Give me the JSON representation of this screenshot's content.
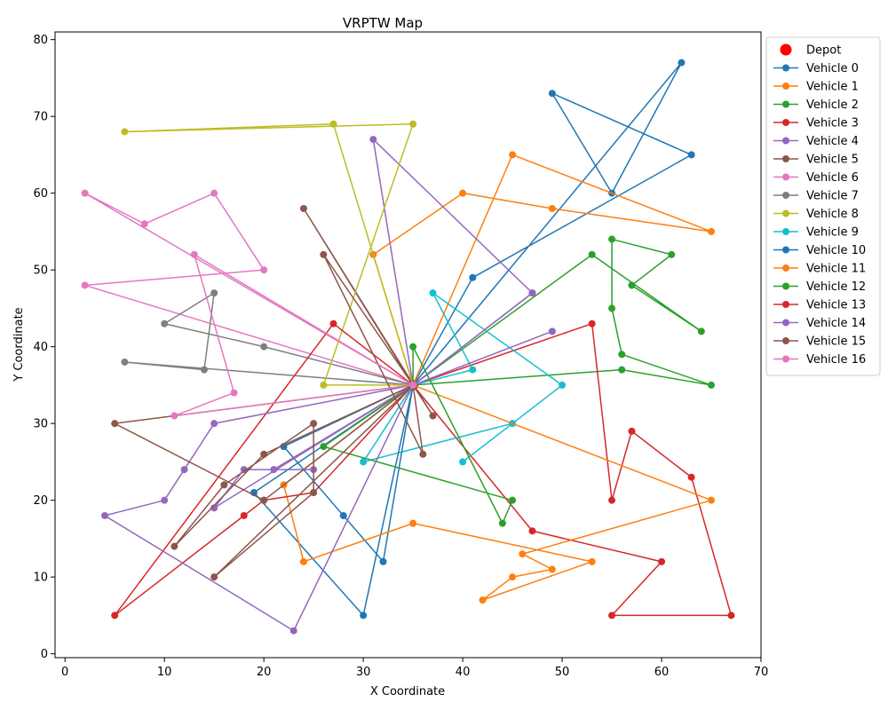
{
  "chart_data": {
    "type": "line",
    "title": "VRPTW Map",
    "xlabel": "X Coordinate",
    "ylabel": "Y Coordinate",
    "xlim": [
      -1,
      70
    ],
    "ylim": [
      -0.5,
      81
    ],
    "xticks": [
      0,
      10,
      20,
      30,
      40,
      50,
      60,
      70
    ],
    "yticks": [
      0,
      10,
      20,
      30,
      40,
      50,
      60,
      70,
      80
    ],
    "grid": false,
    "legend_position": "outside upper right",
    "depot": {
      "name": "Depot",
      "x": 35,
      "y": 35,
      "color": "#ff0000"
    },
    "series": [
      {
        "name": "Vehicle 0",
        "color": "#1f77b4",
        "points": [
          [
            35,
            35
          ],
          [
            41,
            49
          ],
          [
            63,
            65
          ],
          [
            49,
            73
          ],
          [
            55,
            60
          ],
          [
            62,
            77
          ],
          [
            35,
            35
          ]
        ]
      },
      {
        "name": "Vehicle 1",
        "color": "#ff7f0e",
        "points": [
          [
            35,
            35
          ],
          [
            45,
            65
          ],
          [
            65,
            55
          ],
          [
            49,
            58
          ],
          [
            40,
            60
          ],
          [
            31,
            52
          ],
          [
            35,
            35
          ]
        ]
      },
      {
        "name": "Vehicle 2",
        "color": "#2ca02c",
        "points": [
          [
            35,
            35
          ],
          [
            53,
            52
          ],
          [
            64,
            42
          ],
          [
            57,
            48
          ],
          [
            61,
            52
          ],
          [
            55,
            54
          ],
          [
            55,
            45
          ],
          [
            56,
            39
          ],
          [
            65,
            35
          ],
          [
            56,
            37
          ],
          [
            35,
            35
          ]
        ]
      },
      {
        "name": "Vehicle 3",
        "color": "#d62728",
        "points": [
          [
            35,
            35
          ],
          [
            53,
            43
          ],
          [
            55,
            20
          ],
          [
            57,
            29
          ],
          [
            63,
            23
          ],
          [
            67,
            5
          ],
          [
            55,
            5
          ],
          [
            60,
            12
          ],
          [
            47,
            16
          ],
          [
            35,
            35
          ]
        ]
      },
      {
        "name": "Vehicle 4",
        "color": "#9467bd",
        "points": [
          [
            35,
            35
          ],
          [
            31,
            67
          ],
          [
            47,
            47
          ],
          [
            35,
            35
          ]
        ]
      },
      {
        "name": "Vehicle 5",
        "color": "#8c564b",
        "points": [
          [
            35,
            35
          ],
          [
            24,
            58
          ],
          [
            37,
            31
          ],
          [
            35,
            35
          ]
        ]
      },
      {
        "name": "Vehicle 6",
        "color": "#e377c2",
        "points": [
          [
            35,
            35
          ],
          [
            2,
            60
          ],
          [
            8,
            56
          ],
          [
            15,
            60
          ],
          [
            20,
            50
          ],
          [
            2,
            48
          ],
          [
            35,
            35
          ]
        ]
      },
      {
        "name": "Vehicle 7",
        "color": "#7f7f7f",
        "points": [
          [
            35,
            35
          ],
          [
            6,
            38
          ],
          [
            14,
            37
          ],
          [
            15,
            47
          ],
          [
            10,
            43
          ],
          [
            20,
            40
          ],
          [
            35,
            35
          ]
        ]
      },
      {
        "name": "Vehicle 8",
        "color": "#bcbd22",
        "points": [
          [
            35,
            35
          ],
          [
            27,
            69
          ],
          [
            6,
            68
          ],
          [
            35,
            69
          ],
          [
            26,
            35
          ],
          [
            35,
            35
          ]
        ]
      },
      {
        "name": "Vehicle 9",
        "color": "#17becf",
        "points": [
          [
            35,
            35
          ],
          [
            41,
            37
          ],
          [
            37,
            47
          ],
          [
            50,
            35
          ],
          [
            40,
            25
          ],
          [
            45,
            30
          ],
          [
            30,
            25
          ],
          [
            35,
            35
          ]
        ]
      },
      {
        "name": "Vehicle 10",
        "color": "#1f77b4",
        "points": [
          [
            35,
            35
          ],
          [
            22,
            27
          ],
          [
            28,
            18
          ],
          [
            32,
            12
          ],
          [
            35,
            35
          ],
          [
            19,
            21
          ],
          [
            30,
            5
          ],
          [
            35,
            35
          ]
        ]
      },
      {
        "name": "Vehicle 11",
        "color": "#ff7f0e",
        "points": [
          [
            35,
            35
          ],
          [
            65,
            20
          ],
          [
            46,
            13
          ],
          [
            49,
            11
          ],
          [
            45,
            10
          ],
          [
            42,
            7
          ],
          [
            53,
            12
          ],
          [
            35,
            17
          ],
          [
            24,
            12
          ],
          [
            22,
            22
          ],
          [
            35,
            35
          ]
        ]
      },
      {
        "name": "Vehicle 12",
        "color": "#2ca02c",
        "points": [
          [
            35,
            35
          ],
          [
            35,
            40
          ],
          [
            44,
            17
          ],
          [
            45,
            20
          ],
          [
            26,
            27
          ],
          [
            35,
            35
          ]
        ]
      },
      {
        "name": "Vehicle 13",
        "color": "#d62728",
        "points": [
          [
            35,
            35
          ],
          [
            27,
            43
          ],
          [
            5,
            5
          ],
          [
            18,
            18
          ],
          [
            20,
            20
          ],
          [
            25,
            21
          ],
          [
            35,
            35
          ]
        ]
      },
      {
        "name": "Vehicle 14",
        "color": "#9467bd",
        "points": [
          [
            35,
            35
          ],
          [
            47,
            47
          ],
          [
            35,
            35
          ],
          [
            49,
            42
          ],
          [
            35,
            35
          ],
          [
            15,
            19
          ],
          [
            18,
            24
          ],
          [
            25,
            24
          ],
          [
            21,
            24
          ],
          [
            35,
            35
          ],
          [
            15,
            30
          ],
          [
            12,
            24
          ],
          [
            10,
            20
          ],
          [
            4,
            18
          ],
          [
            23,
            3
          ],
          [
            35,
            35
          ]
        ]
      },
      {
        "name": "Vehicle 15",
        "color": "#8c564b",
        "points": [
          [
            35,
            35
          ],
          [
            26,
            52
          ],
          [
            36,
            26
          ],
          [
            35,
            35
          ],
          [
            20,
            26
          ],
          [
            11,
            14
          ],
          [
            16,
            22
          ],
          [
            25,
            30
          ],
          [
            25,
            21
          ],
          [
            15,
            10
          ],
          [
            35,
            35
          ],
          [
            5,
            30
          ],
          [
            20,
            20
          ],
          [
            35,
            35
          ]
        ]
      },
      {
        "name": "Vehicle 16",
        "color": "#e377c2",
        "points": [
          [
            35,
            35
          ],
          [
            13,
            52
          ],
          [
            17,
            34
          ],
          [
            11,
            31
          ],
          [
            35,
            35
          ]
        ]
      }
    ]
  }
}
